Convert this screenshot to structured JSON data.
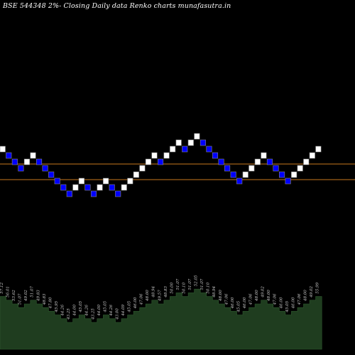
{
  "chart_data": {
    "type": "renko",
    "title": "BSE 544348  2%-  Closing Daily data  Renko  charts munafasutra.in",
    "bricks": [
      {
        "dir": "up",
        "level": 13
      },
      {
        "dir": "down",
        "level": 12
      },
      {
        "dir": "down",
        "level": 11
      },
      {
        "dir": "down",
        "level": 10
      },
      {
        "dir": "up",
        "level": 11
      },
      {
        "dir": "up",
        "level": 12
      },
      {
        "dir": "down",
        "level": 11
      },
      {
        "dir": "down",
        "level": 10
      },
      {
        "dir": "down",
        "level": 9
      },
      {
        "dir": "down",
        "level": 8
      },
      {
        "dir": "down",
        "level": 7
      },
      {
        "dir": "down",
        "level": 6
      },
      {
        "dir": "up",
        "level": 7
      },
      {
        "dir": "up",
        "level": 8
      },
      {
        "dir": "down",
        "level": 7
      },
      {
        "dir": "down",
        "level": 6
      },
      {
        "dir": "up",
        "level": 7
      },
      {
        "dir": "up",
        "level": 8
      },
      {
        "dir": "down",
        "level": 7
      },
      {
        "dir": "down",
        "level": 6
      },
      {
        "dir": "up",
        "level": 7
      },
      {
        "dir": "up",
        "level": 8
      },
      {
        "dir": "up",
        "level": 9
      },
      {
        "dir": "up",
        "level": 10
      },
      {
        "dir": "up",
        "level": 11
      },
      {
        "dir": "up",
        "level": 12
      },
      {
        "dir": "down",
        "level": 11
      },
      {
        "dir": "up",
        "level": 12
      },
      {
        "dir": "up",
        "level": 13
      },
      {
        "dir": "up",
        "level": 14
      },
      {
        "dir": "down",
        "level": 13
      },
      {
        "dir": "up",
        "level": 14
      },
      {
        "dir": "up",
        "level": 15
      },
      {
        "dir": "down",
        "level": 14
      },
      {
        "dir": "down",
        "level": 13
      },
      {
        "dir": "down",
        "level": 12
      },
      {
        "dir": "down",
        "level": 11
      },
      {
        "dir": "down",
        "level": 10
      },
      {
        "dir": "down",
        "level": 9
      },
      {
        "dir": "down",
        "level": 8
      },
      {
        "dir": "up",
        "level": 9
      },
      {
        "dir": "up",
        "level": 10
      },
      {
        "dir": "up",
        "level": 11
      },
      {
        "dir": "up",
        "level": 12
      },
      {
        "dir": "down",
        "level": 11
      },
      {
        "dir": "down",
        "level": 10
      },
      {
        "dir": "down",
        "level": 9
      },
      {
        "dir": "down",
        "level": 8
      },
      {
        "dir": "up",
        "level": 9
      },
      {
        "dir": "up",
        "level": 10
      },
      {
        "dir": "up",
        "level": 11
      },
      {
        "dir": "up",
        "level": 12
      },
      {
        "dir": "up",
        "level": 13
      }
    ],
    "price_labels": [
      "57.12",
      "56.01",
      "53.62",
      "51.07",
      "49.02",
      "51.07",
      "49.83",
      "48.83",
      "47.80",
      "45.95",
      "44.26",
      "43.25",
      "44.00",
      "45.05",
      "44.26",
      "43.25",
      "44.00",
      "45.05",
      "44.26",
      "43.00",
      "44.09",
      "45.05",
      "46.00",
      "47.06",
      "48.00",
      "48.94",
      "49.57",
      "48.83",
      "50.00",
      "51.07",
      "50.10",
      "51.07",
      "52.05",
      "51.07",
      "50.10",
      "48.94",
      "48.00",
      "47.06",
      "46.00",
      "45.05",
      "46.00",
      "47.06",
      "48.00",
      "49.02",
      "48.00",
      "47.06",
      "46.00",
      "45.05",
      "46.00",
      "47.06",
      "48.00",
      "49.02",
      "55.99"
    ],
    "ref_lines": [
      {
        "name": "upper",
        "color": "#c8781e"
      },
      {
        "name": "lower",
        "color": "#c8781e"
      }
    ],
    "grid": false,
    "colors": {
      "background": "#000000",
      "up": "#ffffff",
      "down": "#0000ff",
      "border": "#888888",
      "area": "#1f3d1f",
      "area_edge": "#2f5a2f",
      "label": "#cccccc"
    }
  }
}
